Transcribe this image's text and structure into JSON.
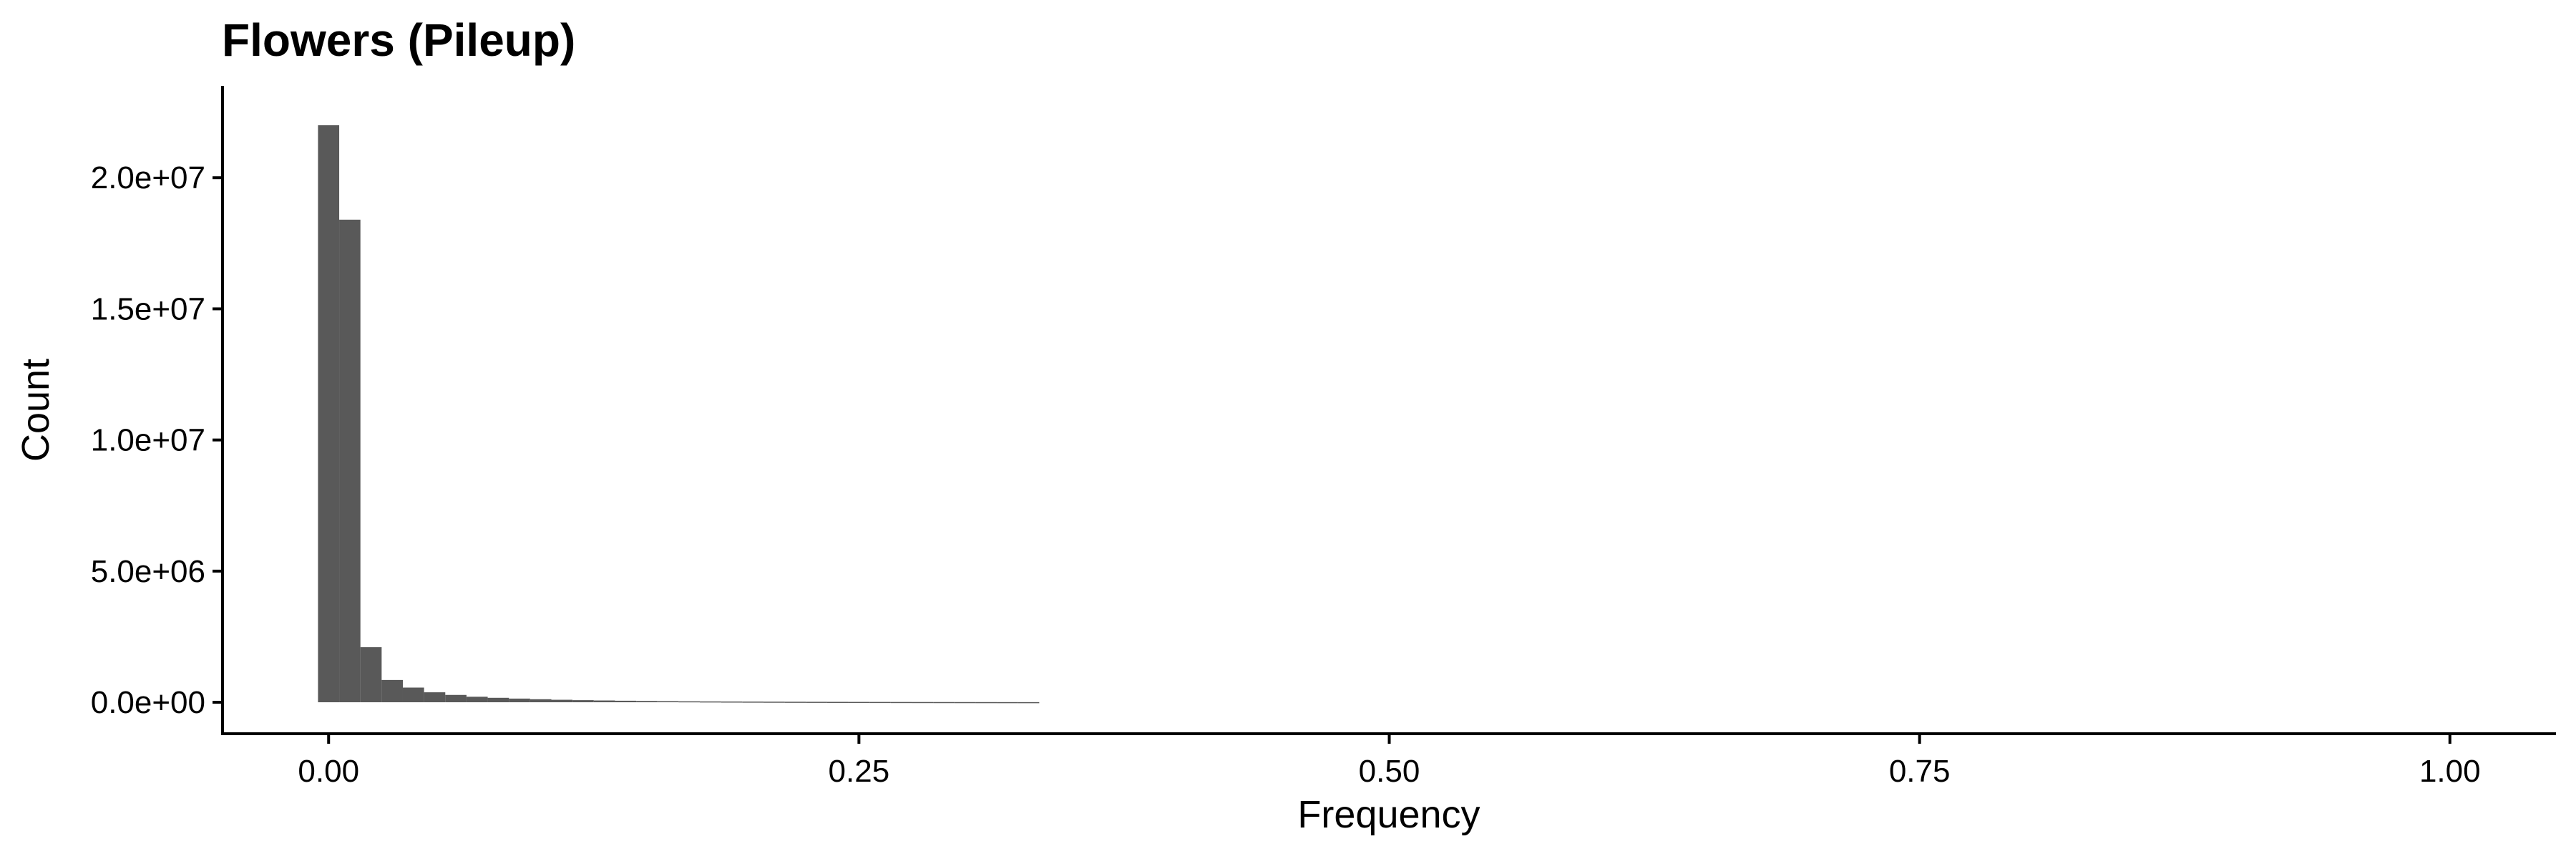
{
  "chart_data": {
    "type": "bar",
    "title": "Flowers (Pileup)",
    "xlabel": "Frequency",
    "ylabel": "Count",
    "xlim": [
      -0.05,
      1.05
    ],
    "ylim": [
      -1200000,
      23500000
    ],
    "x_ticks": [
      0.0,
      0.25,
      0.5,
      0.75,
      1.0
    ],
    "x_tick_labels": [
      "0.00",
      "0.25",
      "0.50",
      "0.75",
      "1.00"
    ],
    "y_ticks": [
      0,
      5000000,
      10000000,
      15000000,
      20000000
    ],
    "y_tick_labels": [
      "0.0e+00",
      "5.0e+06",
      "1.0e+07",
      "1.5e+07",
      "2.0e+07"
    ],
    "bin_width": 0.01,
    "bin_start": -0.005,
    "values": [
      22000000,
      18400000,
      2100000,
      850000,
      560000,
      380000,
      280000,
      210000,
      170000,
      140000,
      115000,
      95000,
      80000,
      68000,
      58000,
      50000,
      43000,
      37000,
      32000,
      28000,
      25000,
      22000,
      19000,
      17000,
      15000,
      13000,
      11500,
      10000,
      9000,
      8000,
      7000,
      6200,
      5500,
      5000
    ],
    "bar_color": "#595959",
    "grid": false,
    "legend": "none"
  }
}
